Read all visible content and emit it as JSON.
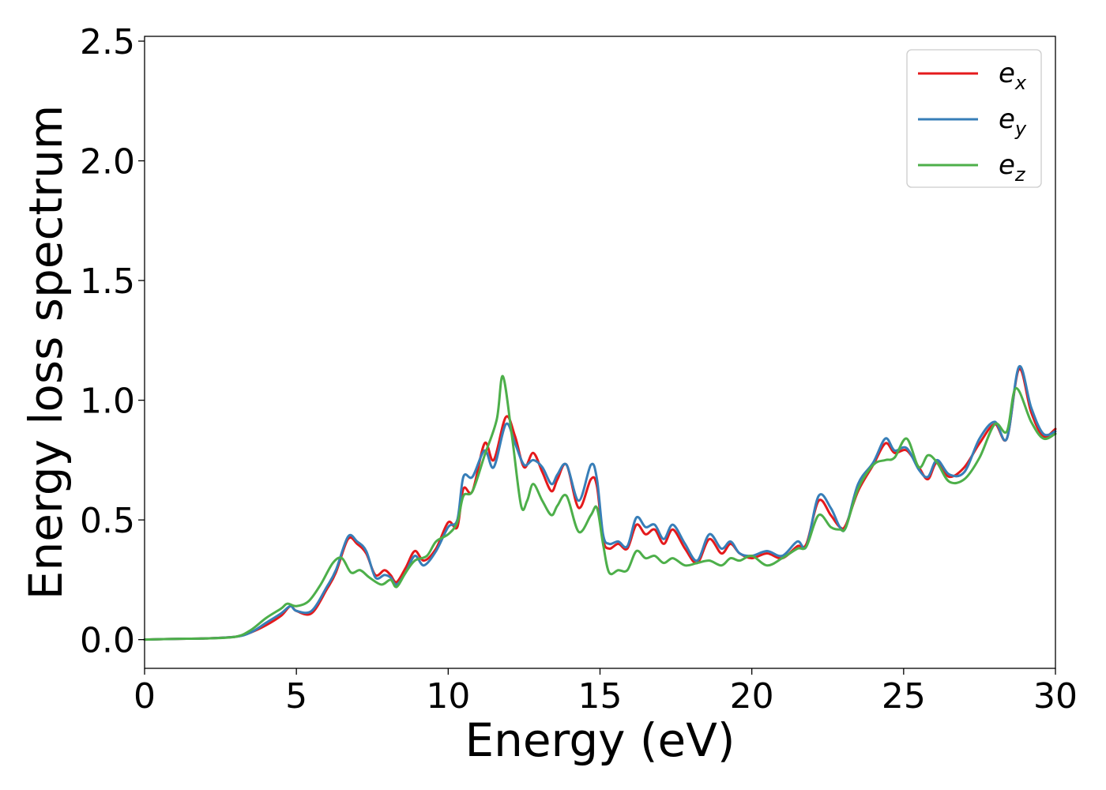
{
  "chart_data": {
    "type": "line",
    "title": "",
    "xlabel": "Energy (eV)",
    "ylabel": "Energy loss spectrum",
    "xlim": [
      0,
      30
    ],
    "ylim": [
      -0.12,
      2.52
    ],
    "xticks": [
      0,
      5,
      10,
      15,
      20,
      25,
      30
    ],
    "xtick_labels": [
      "0",
      "5",
      "10",
      "15",
      "20",
      "25",
      "30"
    ],
    "yticks": [
      0.0,
      0.5,
      1.0,
      1.5,
      2.0,
      2.5
    ],
    "ytick_labels": [
      "0.0",
      "0.5",
      "1.0",
      "1.5",
      "2.0",
      "2.5"
    ],
    "grid": false,
    "legend_position": "top-right",
    "series": [
      {
        "name": "e",
        "subscript": "x",
        "color": "#e41a1c",
        "points": [
          [
            0,
            0
          ],
          [
            1,
            0.003
          ],
          [
            2,
            0.005
          ],
          [
            3,
            0.012
          ],
          [
            3.5,
            0.03
          ],
          [
            4,
            0.06
          ],
          [
            4.5,
            0.1
          ],
          [
            4.8,
            0.14
          ],
          [
            5,
            0.12
          ],
          [
            5.5,
            0.11
          ],
          [
            6,
            0.21
          ],
          [
            6.3,
            0.28
          ],
          [
            6.7,
            0.42
          ],
          [
            7,
            0.4
          ],
          [
            7.3,
            0.36
          ],
          [
            7.6,
            0.27
          ],
          [
            7.9,
            0.29
          ],
          [
            8.1,
            0.27
          ],
          [
            8.3,
            0.24
          ],
          [
            8.6,
            0.3
          ],
          [
            8.9,
            0.37
          ],
          [
            9.2,
            0.33
          ],
          [
            9.6,
            0.38
          ],
          [
            10,
            0.49
          ],
          [
            10.3,
            0.47
          ],
          [
            10.5,
            0.63
          ],
          [
            10.8,
            0.62
          ],
          [
            11.2,
            0.82
          ],
          [
            11.5,
            0.75
          ],
          [
            11.9,
            0.93
          ],
          [
            12.2,
            0.85
          ],
          [
            12.5,
            0.72
          ],
          [
            12.8,
            0.78
          ],
          [
            13.1,
            0.7
          ],
          [
            13.4,
            0.62
          ],
          [
            13.6,
            0.67
          ],
          [
            13.9,
            0.73
          ],
          [
            14.3,
            0.55
          ],
          [
            14.7,
            0.67
          ],
          [
            14.9,
            0.64
          ],
          [
            15.1,
            0.42
          ],
          [
            15.3,
            0.38
          ],
          [
            15.6,
            0.4
          ],
          [
            15.9,
            0.38
          ],
          [
            16.2,
            0.48
          ],
          [
            16.5,
            0.44
          ],
          [
            16.8,
            0.46
          ],
          [
            17.1,
            0.4
          ],
          [
            17.4,
            0.46
          ],
          [
            17.8,
            0.38
          ],
          [
            18.2,
            0.32
          ],
          [
            18.6,
            0.42
          ],
          [
            19,
            0.36
          ],
          [
            19.3,
            0.4
          ],
          [
            19.6,
            0.36
          ],
          [
            20,
            0.34
          ],
          [
            20.5,
            0.36
          ],
          [
            21,
            0.34
          ],
          [
            21.5,
            0.39
          ],
          [
            21.8,
            0.4
          ],
          [
            22.2,
            0.58
          ],
          [
            22.6,
            0.52
          ],
          [
            22.9,
            0.47
          ],
          [
            23.1,
            0.48
          ],
          [
            23.5,
            0.62
          ],
          [
            24,
            0.73
          ],
          [
            24.4,
            0.82
          ],
          [
            24.7,
            0.78
          ],
          [
            25.1,
            0.79
          ],
          [
            25.5,
            0.72
          ],
          [
            25.8,
            0.67
          ],
          [
            26.1,
            0.74
          ],
          [
            26.5,
            0.68
          ],
          [
            27,
            0.72
          ],
          [
            27.5,
            0.82
          ],
          [
            28,
            0.9
          ],
          [
            28.4,
            0.84
          ],
          [
            28.8,
            1.13
          ],
          [
            29.2,
            0.95
          ],
          [
            29.6,
            0.85
          ],
          [
            30,
            0.88
          ]
        ]
      },
      {
        "name": "e",
        "subscript": "y",
        "color": "#377eb8",
        "points": [
          [
            0,
            0
          ],
          [
            1,
            0.003
          ],
          [
            2,
            0.005
          ],
          [
            3,
            0.012
          ],
          [
            3.5,
            0.03
          ],
          [
            4,
            0.07
          ],
          [
            4.5,
            0.11
          ],
          [
            4.8,
            0.14
          ],
          [
            5,
            0.12
          ],
          [
            5.5,
            0.12
          ],
          [
            6,
            0.22
          ],
          [
            6.3,
            0.29
          ],
          [
            6.7,
            0.43
          ],
          [
            7,
            0.41
          ],
          [
            7.3,
            0.37
          ],
          [
            7.6,
            0.26
          ],
          [
            7.9,
            0.27
          ],
          [
            8.1,
            0.26
          ],
          [
            8.3,
            0.23
          ],
          [
            8.6,
            0.28
          ],
          [
            8.9,
            0.35
          ],
          [
            9.2,
            0.31
          ],
          [
            9.6,
            0.37
          ],
          [
            10,
            0.47
          ],
          [
            10.3,
            0.5
          ],
          [
            10.5,
            0.68
          ],
          [
            10.8,
            0.68
          ],
          [
            11.2,
            0.79
          ],
          [
            11.5,
            0.72
          ],
          [
            11.9,
            0.9
          ],
          [
            12.2,
            0.82
          ],
          [
            12.5,
            0.73
          ],
          [
            12.8,
            0.75
          ],
          [
            13.1,
            0.72
          ],
          [
            13.4,
            0.65
          ],
          [
            13.6,
            0.69
          ],
          [
            13.9,
            0.73
          ],
          [
            14.3,
            0.58
          ],
          [
            14.7,
            0.73
          ],
          [
            14.9,
            0.67
          ],
          [
            15.1,
            0.44
          ],
          [
            15.3,
            0.4
          ],
          [
            15.6,
            0.41
          ],
          [
            15.9,
            0.39
          ],
          [
            16.2,
            0.51
          ],
          [
            16.5,
            0.47
          ],
          [
            16.8,
            0.48
          ],
          [
            17.1,
            0.42
          ],
          [
            17.4,
            0.48
          ],
          [
            17.8,
            0.4
          ],
          [
            18.2,
            0.33
          ],
          [
            18.6,
            0.44
          ],
          [
            19,
            0.38
          ],
          [
            19.3,
            0.41
          ],
          [
            19.6,
            0.36
          ],
          [
            20,
            0.35
          ],
          [
            20.5,
            0.37
          ],
          [
            21,
            0.35
          ],
          [
            21.5,
            0.41
          ],
          [
            21.8,
            0.39
          ],
          [
            22.2,
            0.6
          ],
          [
            22.6,
            0.55
          ],
          [
            22.9,
            0.47
          ],
          [
            23.1,
            0.47
          ],
          [
            23.5,
            0.65
          ],
          [
            24,
            0.74
          ],
          [
            24.4,
            0.84
          ],
          [
            24.7,
            0.79
          ],
          [
            25.1,
            0.8
          ],
          [
            25.5,
            0.71
          ],
          [
            25.8,
            0.68
          ],
          [
            26.1,
            0.75
          ],
          [
            26.5,
            0.69
          ],
          [
            27,
            0.7
          ],
          [
            27.5,
            0.84
          ],
          [
            28,
            0.91
          ],
          [
            28.4,
            0.84
          ],
          [
            28.8,
            1.14
          ],
          [
            29.2,
            0.97
          ],
          [
            29.6,
            0.86
          ],
          [
            30,
            0.87
          ]
        ]
      },
      {
        "name": "e",
        "subscript": "z",
        "color": "#4daf4a",
        "points": [
          [
            0,
            0
          ],
          [
            1,
            0.003
          ],
          [
            2,
            0.005
          ],
          [
            3,
            0.012
          ],
          [
            3.5,
            0.04
          ],
          [
            4,
            0.09
          ],
          [
            4.5,
            0.13
          ],
          [
            4.7,
            0.15
          ],
          [
            5,
            0.14
          ],
          [
            5.4,
            0.16
          ],
          [
            5.8,
            0.23
          ],
          [
            6.2,
            0.32
          ],
          [
            6.5,
            0.34
          ],
          [
            6.8,
            0.28
          ],
          [
            7.1,
            0.29
          ],
          [
            7.4,
            0.26
          ],
          [
            7.8,
            0.23
          ],
          [
            8.1,
            0.25
          ],
          [
            8.3,
            0.22
          ],
          [
            8.6,
            0.28
          ],
          [
            8.9,
            0.33
          ],
          [
            9.3,
            0.35
          ],
          [
            9.6,
            0.41
          ],
          [
            10,
            0.44
          ],
          [
            10.3,
            0.49
          ],
          [
            10.5,
            0.6
          ],
          [
            10.8,
            0.62
          ],
          [
            11.2,
            0.77
          ],
          [
            11.6,
            0.92
          ],
          [
            11.8,
            1.1
          ],
          [
            12.1,
            0.85
          ],
          [
            12.4,
            0.56
          ],
          [
            12.6,
            0.58
          ],
          [
            12.8,
            0.65
          ],
          [
            13.1,
            0.58
          ],
          [
            13.4,
            0.52
          ],
          [
            13.6,
            0.56
          ],
          [
            13.9,
            0.6
          ],
          [
            14.3,
            0.45
          ],
          [
            14.7,
            0.52
          ],
          [
            14.9,
            0.55
          ],
          [
            15.1,
            0.4
          ],
          [
            15.3,
            0.28
          ],
          [
            15.6,
            0.29
          ],
          [
            15.9,
            0.29
          ],
          [
            16.2,
            0.37
          ],
          [
            16.5,
            0.34
          ],
          [
            16.8,
            0.35
          ],
          [
            17.1,
            0.32
          ],
          [
            17.4,
            0.34
          ],
          [
            17.8,
            0.31
          ],
          [
            18.2,
            0.32
          ],
          [
            18.6,
            0.33
          ],
          [
            19,
            0.31
          ],
          [
            19.3,
            0.34
          ],
          [
            19.6,
            0.33
          ],
          [
            20,
            0.35
          ],
          [
            20.5,
            0.31
          ],
          [
            21,
            0.34
          ],
          [
            21.5,
            0.38
          ],
          [
            21.8,
            0.39
          ],
          [
            22.2,
            0.52
          ],
          [
            22.6,
            0.47
          ],
          [
            22.9,
            0.46
          ],
          [
            23.1,
            0.47
          ],
          [
            23.5,
            0.63
          ],
          [
            24,
            0.73
          ],
          [
            24.4,
            0.75
          ],
          [
            24.7,
            0.76
          ],
          [
            25.1,
            0.84
          ],
          [
            25.5,
            0.72
          ],
          [
            25.8,
            0.77
          ],
          [
            26.1,
            0.74
          ],
          [
            26.5,
            0.66
          ],
          [
            27,
            0.67
          ],
          [
            27.5,
            0.76
          ],
          [
            28,
            0.9
          ],
          [
            28.4,
            0.87
          ],
          [
            28.7,
            1.05
          ],
          [
            29.2,
            0.91
          ],
          [
            29.6,
            0.84
          ],
          [
            30,
            0.86
          ]
        ]
      }
    ]
  }
}
